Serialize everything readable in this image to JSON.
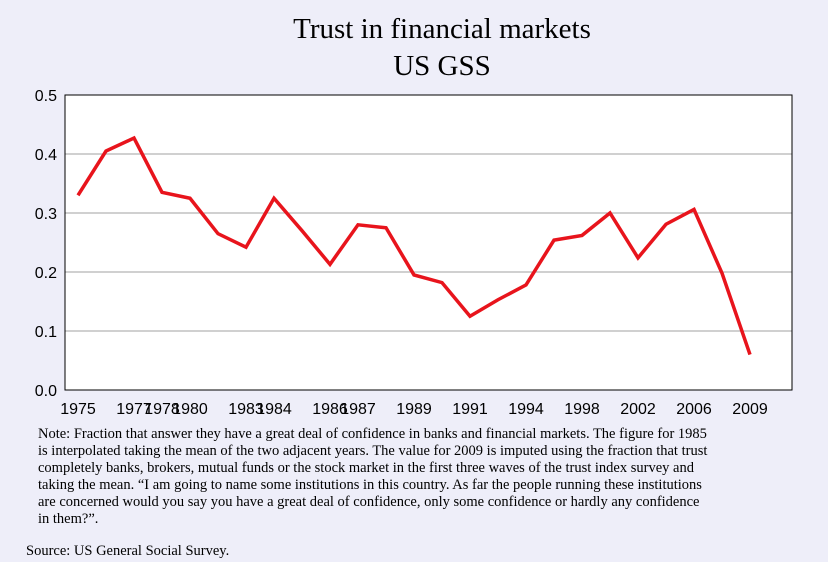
{
  "chart_data": {
    "type": "line",
    "title": "Trust in financial markets",
    "subtitle": "US GSS",
    "categories": [
      "1975",
      null,
      "1977",
      "1978",
      "1980",
      null,
      "1983",
      "1984",
      null,
      "1986",
      "1987",
      null,
      "1989",
      null,
      "1991",
      null,
      "1994",
      null,
      "1998",
      null,
      "2002",
      null,
      "2006",
      null,
      "2009"
    ],
    "series": [
      {
        "name": "Trust",
        "color": "#e8141c",
        "values": [
          0.33,
          0.405,
          0.427,
          0.335,
          0.325,
          0.265,
          0.242,
          0.325,
          0.27,
          0.213,
          0.28,
          0.275,
          0.195,
          0.182,
          0.125,
          0.153,
          0.178,
          0.254,
          0.262,
          0.3,
          0.224,
          0.281,
          0.306,
          0.198,
          0.06
        ]
      }
    ],
    "ylim": [
      0,
      0.5
    ],
    "yticks": [
      {
        "value": 0,
        "label": "0.0"
      },
      0.1,
      0.2,
      0.3,
      0.4,
      0.5
    ],
    "grid": true,
    "note": [
      "Note: Fraction that answer they have a great deal of confidence in banks and financial markets. The figure for 1985",
      "is interpolated taking the mean of the two adjacent years. The value for 2009 is imputed using the fraction that trust",
      "completely banks, brokers, mutual funds or the stock market in the first three waves of the trust index survey and",
      "taking the mean. “I am going to name some institutions in this country. As far the people running these institutions",
      "are concerned would you say you have a great deal of confidence, only some confidence or hardly any confidence",
      "in them?”."
    ],
    "source": "Source: US General Social Survey."
  }
}
